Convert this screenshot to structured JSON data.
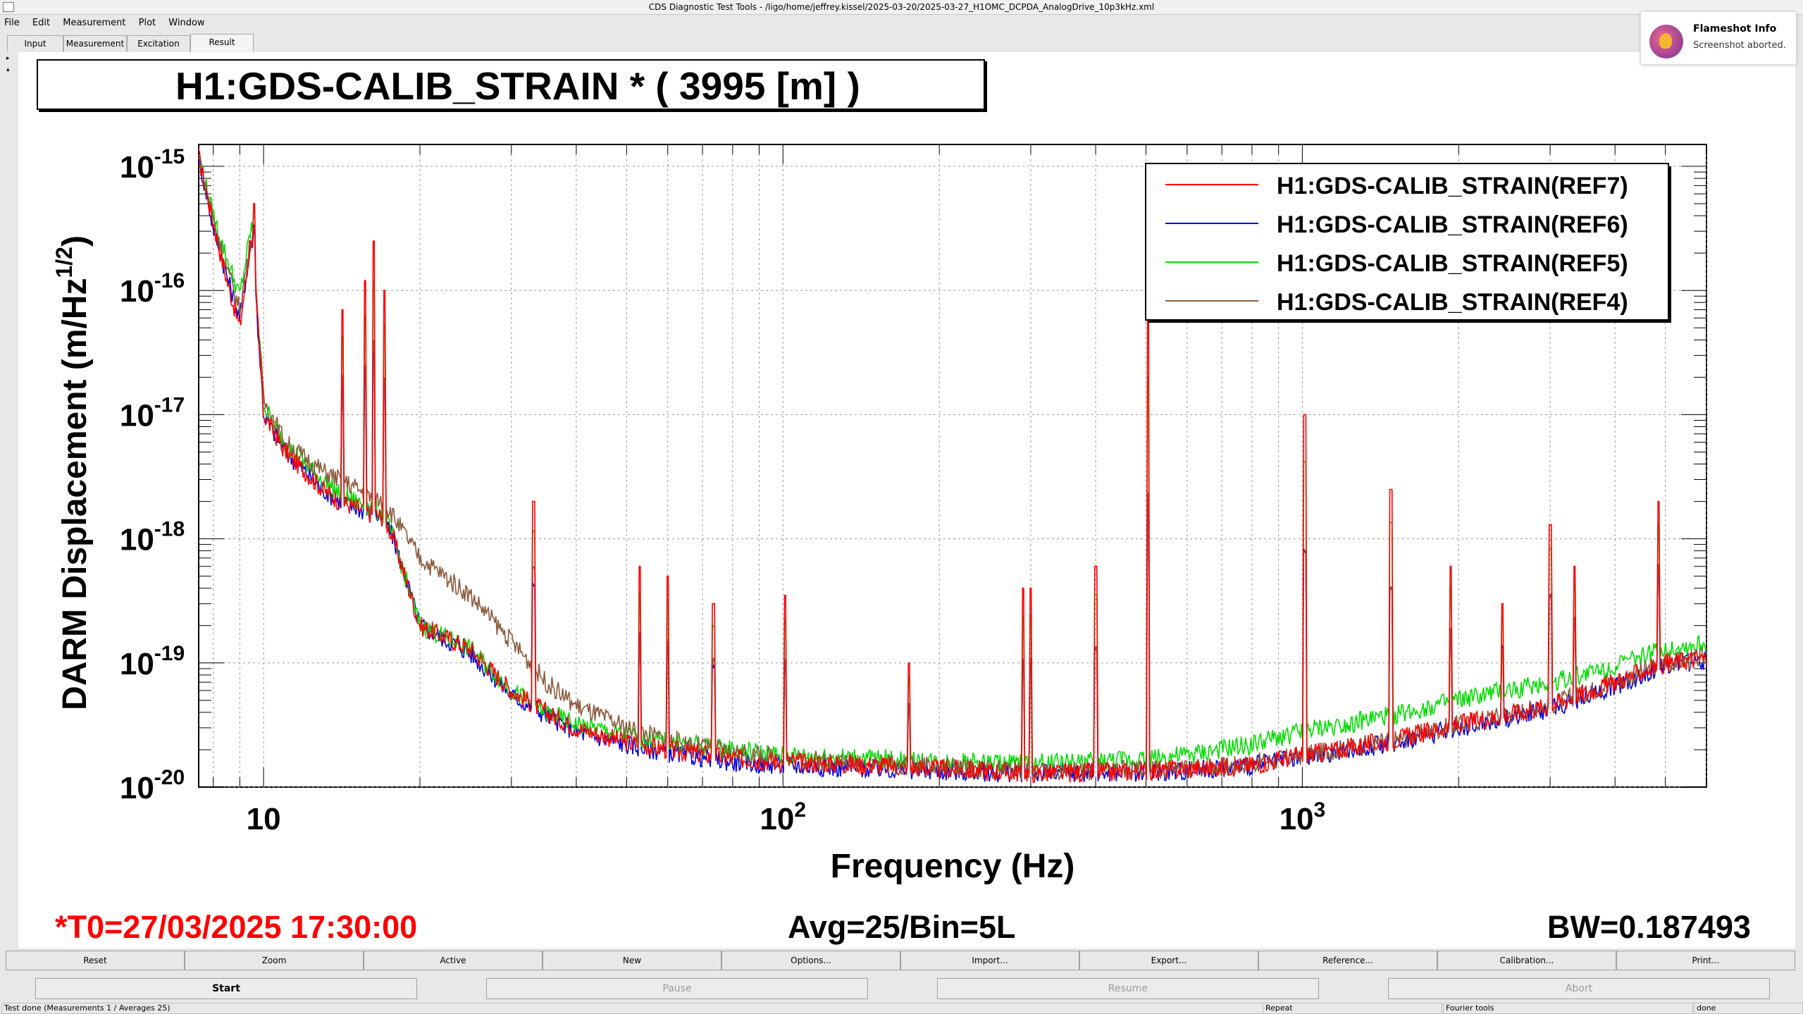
{
  "window": {
    "title": "CDS Diagnostic Test Tools - /ligo/home/jeffrey.kissel/2025-03-20/2025-03-27_H1OMC_DCPDA_AnalogDrive_10p3kHz.xml"
  },
  "menu": [
    "File",
    "Edit",
    "Measurement",
    "Plot",
    "Window"
  ],
  "tabs": [
    "Input",
    "Measurement",
    "Excitation",
    "Result"
  ],
  "active_tab": "Result",
  "plot_title": "H1:GDS-CALIB_STRAIN * ( 3995 [m] )",
  "info": {
    "t0": "*T0=27/03/2025 17:30:00",
    "avg": "Avg=25/Bin=5L",
    "bw": "BW=0.187493"
  },
  "toolbar1": [
    "Reset",
    "Zoom",
    "Active",
    "New",
    "Options...",
    "Import...",
    "Export...",
    "Reference...",
    "Calibration...",
    "Print..."
  ],
  "toolbar2": [
    {
      "label": "Start",
      "enabled": true
    },
    {
      "label": "Pause",
      "enabled": false
    },
    {
      "label": "Resume",
      "enabled": false
    },
    {
      "label": "Abort",
      "enabled": false
    }
  ],
  "status": {
    "message": "Test done (Measurements 1 / Averages 25)",
    "repeat": "Repeat",
    "mode": "Fourier tools",
    "state": "done"
  },
  "notification": {
    "title": "Flameshot Info",
    "text": "Screenshot aborted."
  },
  "chart_data": {
    "type": "line",
    "xlabel": "Frequency (Hz)",
    "ylabel": "DARM Displacement (m/Hz^1/2)",
    "x_scale": "log",
    "y_scale": "log",
    "xlim": [
      7.5,
      6000
    ],
    "ylim": [
      1e-20,
      1.5e-15
    ],
    "x_ticks": [
      "10",
      "10^2",
      "10^3"
    ],
    "y_ticks": [
      "10^-15",
      "10^-16",
      "10^-17",
      "10^-18",
      "10^-19",
      "10^-20"
    ],
    "grid": true,
    "legend_position": "top-right",
    "series": [
      {
        "name": "H1:GDS-CALIB_STRAIN(REF7)",
        "color": "#ff0000",
        "x": [
          7.5,
          8,
          8.5,
          9,
          9.5,
          10,
          10.5,
          11,
          12,
          13,
          14,
          15,
          16,
          17,
          17.8,
          20,
          25,
          30,
          35,
          40,
          50,
          60,
          80,
          100,
          150,
          200,
          300,
          400,
          600,
          800,
          1000,
          1500,
          2000,
          3000,
          4000,
          5000,
          6000
        ],
        "y": [
          1.2e-15,
          3.5e-16,
          1.2e-16,
          5e-17,
          3e-16,
          1e-17,
          7e-18,
          5e-18,
          3.5e-18,
          2.5e-18,
          2e-18,
          1.8e-18,
          1.6e-18,
          1.5e-18,
          1e-18,
          2e-19,
          1.3e-19,
          6e-20,
          4e-20,
          3e-20,
          2.3e-20,
          2e-20,
          1.7e-20,
          1.6e-20,
          1.5e-20,
          1.4e-20,
          1.3e-20,
          1.3e-20,
          1.4e-20,
          1.5e-20,
          1.8e-20,
          2.4e-20,
          3.2e-20,
          4.5e-20,
          7e-20,
          1e-19,
          1.1e-19
        ]
      },
      {
        "name": "H1:GDS-CALIB_STRAIN(REF6)",
        "color": "#0000dd",
        "x": [
          7.5,
          8,
          8.5,
          9,
          9.5,
          10,
          10.5,
          11,
          12,
          13,
          14,
          15,
          16,
          17,
          17.8,
          20,
          25,
          30,
          35,
          40,
          50,
          60,
          80,
          100,
          150,
          200,
          300,
          400,
          600,
          800,
          1000,
          1500,
          2000,
          3000,
          4000,
          5000,
          6000
        ],
        "y": [
          1.2e-15,
          3.2e-16,
          1.3e-16,
          6e-17,
          2.7e-16,
          1e-17,
          7e-18,
          5e-18,
          3.5e-18,
          2.5e-18,
          2e-18,
          1.8e-18,
          1.6e-18,
          1.5e-18,
          1e-18,
          2e-19,
          1.2e-19,
          5.5e-20,
          3.8e-20,
          2.8e-20,
          2.2e-20,
          1.9e-20,
          1.6e-20,
          1.5e-20,
          1.4e-20,
          1.35e-20,
          1.3e-20,
          1.3e-20,
          1.35e-20,
          1.5e-20,
          1.7e-20,
          2.3e-20,
          3e-20,
          4.3e-20,
          6.5e-20,
          9.5e-20,
          1.05e-19
        ]
      },
      {
        "name": "H1:GDS-CALIB_STRAIN(REF5)",
        "color": "#00dd00",
        "x": [
          7.5,
          8,
          8.5,
          9,
          9.5,
          10,
          10.5,
          11,
          12,
          13,
          14,
          15,
          16,
          17,
          17.8,
          20,
          25,
          30,
          35,
          40,
          50,
          60,
          80,
          100,
          150,
          200,
          300,
          400,
          600,
          800,
          1000,
          1500,
          2000,
          3000,
          4000,
          5000,
          6000
        ],
        "y": [
          1.2e-15,
          4e-16,
          1.8e-16,
          9e-17,
          3.5e-16,
          1.2e-17,
          8e-18,
          6e-18,
          4e-18,
          3e-18,
          2.3e-18,
          2e-18,
          1.8e-18,
          1.6e-18,
          1e-18,
          2e-19,
          1.3e-19,
          6e-20,
          4e-20,
          3.2e-20,
          2.6e-20,
          2.3e-20,
          2e-20,
          1.8e-20,
          1.7e-20,
          1.6e-20,
          1.55e-20,
          1.6e-20,
          1.8e-20,
          2.2e-20,
          2.8e-20,
          3.8e-20,
          5e-20,
          7e-20,
          9.5e-20,
          1.3e-19,
          1.4e-19
        ]
      },
      {
        "name": "H1:GDS-CALIB_STRAIN(REF4)",
        "color": "#8b5a3c",
        "x": [
          7.5,
          8,
          8.5,
          9,
          9.5,
          10,
          10.5,
          11,
          12,
          13,
          14,
          15,
          16,
          17,
          17.8,
          20,
          25,
          30,
          35,
          40,
          50,
          60,
          80,
          100,
          150,
          200,
          300,
          400,
          600,
          800,
          1000,
          1500,
          2000,
          3000,
          4000,
          5000,
          6000
        ],
        "y": [
          1.2e-15,
          3.8e-16,
          1.5e-16,
          7e-17,
          3e-16,
          1.3e-17,
          9e-18,
          6e-18,
          4.5e-18,
          3.5e-18,
          3e-18,
          2.6e-18,
          2.2e-18,
          2e-18,
          1.5e-18,
          7e-19,
          3.5e-19,
          1.5e-19,
          7e-20,
          4.5e-20,
          3e-20,
          2.4e-20,
          1.9e-20,
          1.7e-20,
          1.55e-20,
          1.45e-20,
          1.35e-20,
          1.35e-20,
          1.4e-20,
          1.55e-20,
          1.8e-20,
          2.4e-20,
          3.2e-20,
          4.6e-20,
          7e-20,
          1e-19,
          1.1e-19
        ]
      }
    ],
    "lines": [
      {
        "freq": 9.6,
        "peak": 5e-16
      },
      {
        "freq": 14.2,
        "peak": 7e-17
      },
      {
        "freq": 15.7,
        "peak": 1.2e-16
      },
      {
        "freq": 16.3,
        "peak": 2.5e-16
      },
      {
        "freq": 17.1,
        "peak": 1e-16
      },
      {
        "freq": 33.1,
        "peak": 2e-18
      },
      {
        "freq": 53,
        "peak": 6e-19
      },
      {
        "freq": 60,
        "peak": 5e-19
      },
      {
        "freq": 73.5,
        "peak": 3e-19
      },
      {
        "freq": 101,
        "peak": 3.5e-19
      },
      {
        "freq": 175,
        "peak": 1e-19
      },
      {
        "freq": 290,
        "peak": 4e-19
      },
      {
        "freq": 300,
        "peak": 4e-19
      },
      {
        "freq": 400,
        "peak": 6e-19
      },
      {
        "freq": 505,
        "peak": 7e-17
      },
      {
        "freq": 1010,
        "peak": 1e-17
      },
      {
        "freq": 1480,
        "peak": 2.5e-18
      },
      {
        "freq": 1930,
        "peak": 6e-19
      },
      {
        "freq": 2430,
        "peak": 3e-19
      },
      {
        "freq": 3000,
        "peak": 1.3e-18
      },
      {
        "freq": 3340,
        "peak": 6e-19
      },
      {
        "freq": 4850,
        "peak": 2e-18
      }
    ]
  }
}
